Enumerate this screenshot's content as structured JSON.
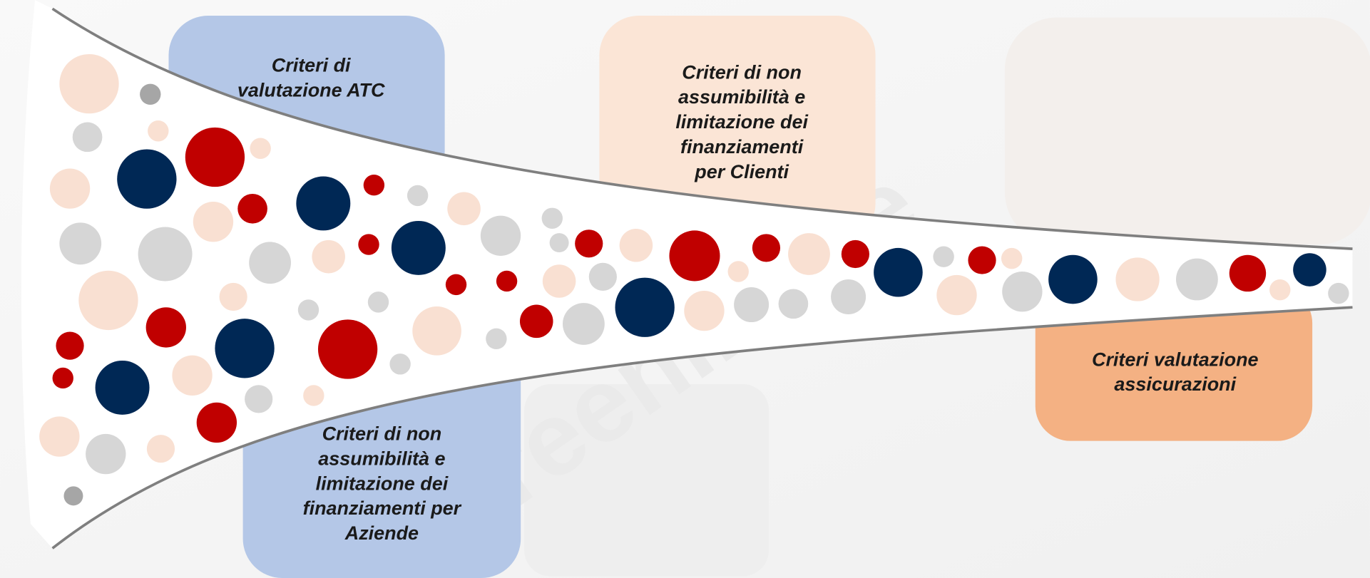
{
  "watermark": "screening fe",
  "boxes": [
    {
      "lines": [
        "Criteri di",
        "valutazione ATC"
      ]
    },
    {
      "lines": [
        "Criteri di non",
        "assumibilità e",
        "limitazione dei",
        "finanziamenti",
        "per Clienti"
      ]
    },
    {
      "lines": [
        "Criteri di non",
        "assumibilità e",
        "limitazione dei",
        "finanziamenti per",
        "Aziende"
      ]
    },
    {
      "lines": [
        "Criteri valutazione",
        "assicurazioni"
      ]
    }
  ]
}
